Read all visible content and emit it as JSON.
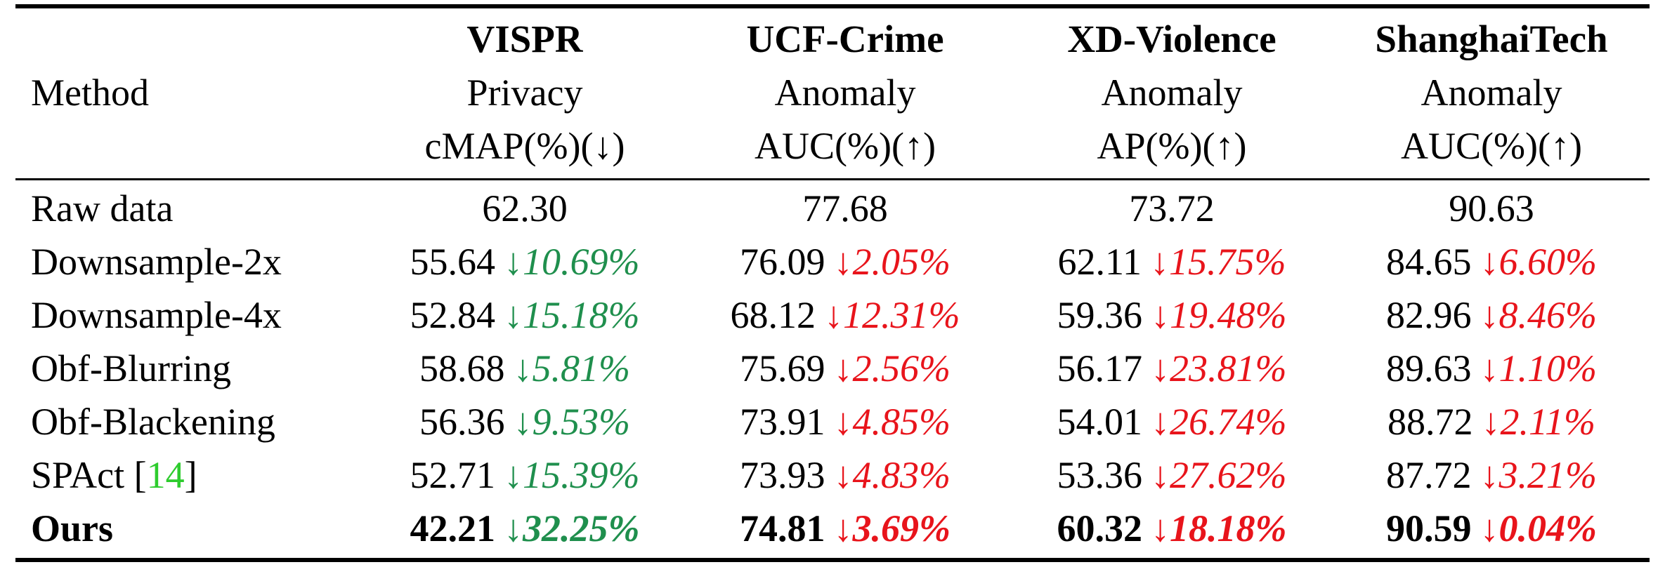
{
  "header": {
    "method_label": "Method",
    "columns": [
      {
        "dataset": "VISPR",
        "task": "Privacy",
        "metric": "cMAP(%)(↓)"
      },
      {
        "dataset": "UCF-Crime",
        "task": "Anomaly",
        "metric": "AUC(%)(↑)"
      },
      {
        "dataset": "XD-Violence",
        "task": "Anomaly",
        "metric": "AP(%)(↑)"
      },
      {
        "dataset": "ShanghaiTech",
        "task": "Anomaly",
        "metric": "AUC(%)(↑)"
      }
    ]
  },
  "rows": [
    {
      "method": "Raw data",
      "cells": [
        {
          "value": "62.30",
          "delta": ""
        },
        {
          "value": "77.68",
          "delta": ""
        },
        {
          "value": "73.72",
          "delta": ""
        },
        {
          "value": "90.63",
          "delta": ""
        }
      ]
    },
    {
      "method": "Downsample-2x",
      "cells": [
        {
          "value": "55.64",
          "arrow": "↓",
          "delta": "10.69%"
        },
        {
          "value": "76.09",
          "arrow": "↓",
          "delta": "2.05%"
        },
        {
          "value": "62.11",
          "arrow": "↓",
          "delta": "15.75%"
        },
        {
          "value": "84.65",
          "arrow": "↓",
          "delta": "6.60%"
        }
      ]
    },
    {
      "method": "Downsample-4x",
      "cells": [
        {
          "value": "52.84",
          "arrow": "↓",
          "delta": "15.18%"
        },
        {
          "value": "68.12",
          "arrow": "↓",
          "delta": "12.31%"
        },
        {
          "value": "59.36",
          "arrow": "↓",
          "delta": "19.48%"
        },
        {
          "value": "82.96",
          "arrow": "↓",
          "delta": "8.46%"
        }
      ]
    },
    {
      "method": "Obf-Blurring",
      "cells": [
        {
          "value": "58.68",
          "arrow": "↓",
          "delta": "5.81%"
        },
        {
          "value": "75.69",
          "arrow": "↓",
          "delta": "2.56%"
        },
        {
          "value": "56.17",
          "arrow": "↓",
          "delta": "23.81%"
        },
        {
          "value": "89.63",
          "arrow": "↓",
          "delta": "1.10%"
        }
      ]
    },
    {
      "method": "Obf-Blackening",
      "cells": [
        {
          "value": "56.36",
          "arrow": "↓",
          "delta": "9.53%"
        },
        {
          "value": "73.91",
          "arrow": "↓",
          "delta": "4.85%"
        },
        {
          "value": "54.01",
          "arrow": "↓",
          "delta": "26.74%"
        },
        {
          "value": "88.72",
          "arrow": "↓",
          "delta": "2.11%"
        }
      ]
    },
    {
      "method": "SPAct [",
      "cite": "14",
      "method_suffix": "]",
      "cells": [
        {
          "value": "52.71",
          "arrow": "↓",
          "delta": "15.39%"
        },
        {
          "value": "73.93",
          "arrow": "↓",
          "delta": "4.83%"
        },
        {
          "value": "53.36",
          "arrow": "↓",
          "delta": "27.62%"
        },
        {
          "value": "87.72",
          "arrow": "↓",
          "delta": "3.21%"
        }
      ]
    },
    {
      "method": "Ours",
      "cells": [
        {
          "value": "42.21",
          "arrow": "↓",
          "delta": "32.25%"
        },
        {
          "value": "74.81",
          "arrow": "↓",
          "delta": "3.69%"
        },
        {
          "value": "60.32",
          "arrow": "↓",
          "delta": "18.18%"
        },
        {
          "value": "90.59",
          "arrow": "↓",
          "delta": "0.04%"
        }
      ]
    }
  ],
  "colors": {
    "privacy_delta": "#1f8f4d",
    "anomaly_delta": "#e8141b",
    "citation": "#2ecc2e"
  }
}
